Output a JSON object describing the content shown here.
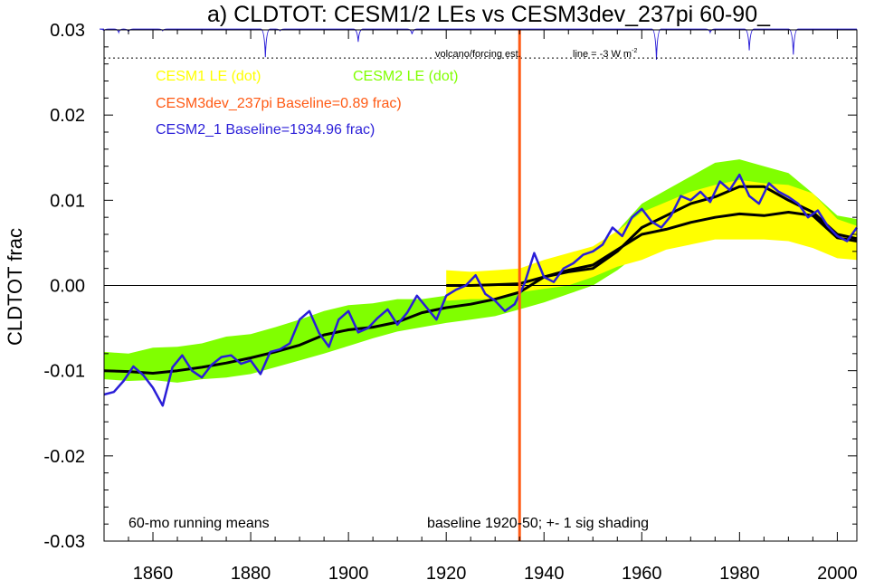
{
  "chart_data": {
    "type": "line",
    "title": "a) CLDTOT: CESM1/2 LEs vs CESM3dev_237pi 60-90_",
    "ylabel": "CLDTOT frac",
    "xlabel": "",
    "xlim": [
      1850,
      2004
    ],
    "ylim": [
      -0.03,
      0.03
    ],
    "x_ticks": [
      1860,
      1880,
      1900,
      1920,
      1940,
      1960,
      1980,
      2000
    ],
    "y_ticks": [
      -0.03,
      -0.02,
      -0.01,
      0.0,
      0.01,
      0.02,
      0.03
    ],
    "y_tick_labels": [
      "-0.03",
      "-0.02",
      "-0.01",
      "0.00",
      "0.01",
      "0.02",
      "0.03"
    ],
    "legend": [
      {
        "label": "CESM1 LE (dot)",
        "color": "#ffff00"
      },
      {
        "label": "CESM2 LE (dot)",
        "color": "#80ff00"
      },
      {
        "label": "CESM3dev_237pi Baseline=0.89 frac)",
        "color": "#ff5a14"
      },
      {
        "label": "CESM2_1 Baseline=1934.96 frac)",
        "color": "#2a1ed8"
      }
    ],
    "annotations": {
      "volcano_label": "volcano/forcing est.",
      "line_label": "line = -3 W m",
      "line_label_sup": "-2",
      "running_means": "60-mo running means",
      "baseline_note": "baseline 1920-50; +- 1 sig shading"
    },
    "vertical_marker_year": 1935,
    "volcano_dotted_line_y": 0.0267,
    "series": [
      {
        "name": "CESM2 LE (dot)",
        "kind": "band",
        "color": "#80ff00",
        "x": [
          1850,
          1855,
          1860,
          1865,
          1870,
          1875,
          1880,
          1885,
          1890,
          1895,
          1900,
          1905,
          1910,
          1915,
          1920,
          1925,
          1930,
          1935,
          1940,
          1945,
          1950,
          1955,
          1960,
          1965,
          1970,
          1975,
          1980,
          1985,
          1990,
          1995,
          2000,
          2004
        ],
        "upper": [
          -0.0078,
          -0.008,
          -0.0073,
          -0.0072,
          -0.0068,
          -0.006,
          -0.0057,
          -0.0049,
          -0.004,
          -0.003,
          -0.0023,
          -0.0021,
          -0.0016,
          -0.0016,
          -0.0012,
          -0.0008,
          -0.0004,
          0.0002,
          0.0014,
          0.0022,
          0.0034,
          0.0064,
          0.0096,
          0.0112,
          0.0128,
          0.0144,
          0.0148,
          0.014,
          0.0132,
          0.0108,
          0.0082,
          0.0078
        ],
        "lower": [
          -0.011,
          -0.0112,
          -0.0111,
          -0.0114,
          -0.011,
          -0.0108,
          -0.0104,
          -0.0096,
          -0.0088,
          -0.008,
          -0.0071,
          -0.0062,
          -0.0054,
          -0.0049,
          -0.0044,
          -0.004,
          -0.0036,
          -0.0028,
          -0.002,
          -0.001,
          0.0,
          0.0018,
          0.004,
          0.0056,
          0.0068,
          0.008,
          0.0088,
          0.0084,
          0.0072,
          0.006,
          0.0046,
          0.0044
        ]
      },
      {
        "name": "CESM1 LE (dot)",
        "kind": "band",
        "color": "#ffff00",
        "x": [
          1920,
          1925,
          1930,
          1935,
          1940,
          1945,
          1950,
          1955,
          1960,
          1965,
          1970,
          1975,
          1980,
          1985,
          1990,
          1995,
          2000,
          2004
        ],
        "upper": [
          0.0018,
          0.0016,
          0.0018,
          0.002,
          0.003,
          0.0038,
          0.0046,
          0.0064,
          0.0086,
          0.0098,
          0.011,
          0.0118,
          0.0124,
          0.012,
          0.0118,
          0.0108,
          0.0078,
          0.007
        ],
        "lower": [
          -0.0018,
          -0.0016,
          -0.0016,
          -0.0008,
          -0.0004,
          0.0,
          0.001,
          0.0022,
          0.003,
          0.0042,
          0.0048,
          0.0054,
          0.0054,
          0.0054,
          0.0052,
          0.0044,
          0.0032,
          0.003
        ]
      },
      {
        "name": "CESM2 LE mean",
        "kind": "line",
        "color": "#000000",
        "x": [
          1850,
          1855,
          1860,
          1865,
          1870,
          1875,
          1880,
          1885,
          1890,
          1895,
          1900,
          1905,
          1910,
          1915,
          1920,
          1925,
          1930,
          1935,
          1940,
          1945,
          1950,
          1955,
          1960,
          1965,
          1970,
          1975,
          1980,
          1985,
          1990,
          1995,
          2000,
          2004
        ],
        "values": [
          -0.01,
          -0.0101,
          -0.0103,
          -0.01,
          -0.0096,
          -0.0091,
          -0.0085,
          -0.0078,
          -0.007,
          -0.0058,
          -0.0052,
          -0.0049,
          -0.0043,
          -0.0032,
          -0.0026,
          -0.0022,
          -0.0016,
          -0.0008,
          0.001,
          0.0016,
          0.002,
          0.004,
          0.0068,
          0.0082,
          0.0096,
          0.0104,
          0.0116,
          0.0116,
          0.01,
          0.0086,
          0.006,
          0.0055
        ]
      },
      {
        "name": "CESM1 LE mean",
        "kind": "line",
        "color": "#000000",
        "x": [
          1920,
          1925,
          1930,
          1935,
          1940,
          1945,
          1950,
          1955,
          1960,
          1965,
          1970,
          1975,
          1980,
          1985,
          1990,
          1995,
          2000,
          2004
        ],
        "values": [
          0.0,
          0.0,
          0.0001,
          0.0002,
          0.001,
          0.0018,
          0.0024,
          0.0042,
          0.006,
          0.0066,
          0.0074,
          0.008,
          0.0084,
          0.0082,
          0.0086,
          0.0082,
          0.0056,
          0.0052
        ]
      },
      {
        "name": "CESM2_1 Baseline=1934.96 frac)",
        "kind": "line",
        "color": "#2a1ed8",
        "x": [
          1850,
          1852,
          1854,
          1856,
          1858,
          1860,
          1862,
          1864,
          1866,
          1868,
          1870,
          1872,
          1874,
          1876,
          1878,
          1880,
          1882,
          1884,
          1886,
          1888,
          1890,
          1892,
          1894,
          1896,
          1898,
          1900,
          1902,
          1904,
          1906,
          1908,
          1910,
          1912,
          1914,
          1916,
          1918,
          1920,
          1922,
          1924,
          1926,
          1928,
          1930,
          1932,
          1934,
          1936,
          1938,
          1940,
          1942,
          1944,
          1946,
          1948,
          1950,
          1952,
          1954,
          1956,
          1958,
          1960,
          1962,
          1964,
          1966,
          1968,
          1970,
          1972,
          1974,
          1976,
          1978,
          1980,
          1982,
          1984,
          1986,
          1988,
          1990,
          1992,
          1994,
          1996,
          1998,
          2000,
          2002,
          2004
        ],
        "values": [
          -0.0128,
          -0.0125,
          -0.0112,
          -0.0095,
          -0.0105,
          -0.012,
          -0.0141,
          -0.0096,
          -0.0082,
          -0.01,
          -0.0108,
          -0.0093,
          -0.0084,
          -0.0082,
          -0.0092,
          -0.0088,
          -0.0104,
          -0.0078,
          -0.0075,
          -0.0068,
          -0.004,
          -0.003,
          -0.0056,
          -0.0072,
          -0.004,
          -0.003,
          -0.0055,
          -0.005,
          -0.0038,
          -0.0028,
          -0.0046,
          -0.0032,
          -0.0012,
          -0.0026,
          -0.004,
          -0.0012,
          -0.0005,
          0.0,
          0.0012,
          -0.001,
          -0.0018,
          -0.003,
          -0.0022,
          0.0002,
          0.0038,
          0.001,
          0.0004,
          0.002,
          0.0026,
          0.0036,
          0.004,
          0.0048,
          0.0068,
          0.0058,
          0.008,
          0.009,
          0.0075,
          0.0068,
          0.0082,
          0.0105,
          0.01,
          0.011,
          0.0098,
          0.0122,
          0.0112,
          0.013,
          0.0105,
          0.0096,
          0.012,
          0.011,
          0.0104,
          0.0096,
          0.008,
          0.0088,
          0.007,
          0.0058,
          0.0052,
          0.0068
        ]
      }
    ],
    "volcano_forcing": {
      "color": "#2a1ed8",
      "x": [
        1850,
        1853,
        1855,
        1862,
        1883,
        1886,
        1902,
        1913,
        1963,
        1974,
        1982,
        1991
      ],
      "dip": [
        0.0002,
        0.0004,
        0.0003,
        0.0002,
        0.0033,
        0.0002,
        0.0015,
        0.0006,
        0.0036,
        0.0004,
        0.0025,
        0.003
      ]
    }
  }
}
